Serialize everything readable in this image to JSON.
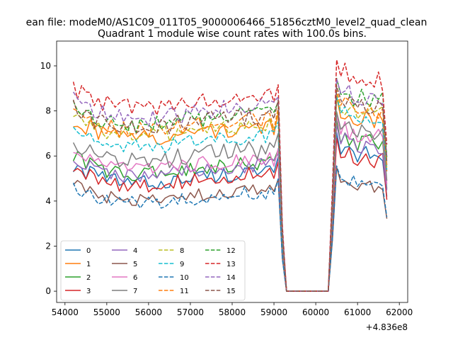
{
  "chart_data": {
    "type": "line",
    "suptitle": "ean file: modeM0/AS1C09_011T05_9000006466_51856cztM0_level2_quad_clean",
    "title": "Quadrant 1 module wise count rates with 100.0s bins.",
    "xlabel": "",
    "ylabel": "",
    "x_offset_label": "+4.836e8",
    "xlim": [
      53800,
      62200
    ],
    "ylim": [
      -0.5,
      11.1
    ],
    "xticks": [
      54000,
      55000,
      56000,
      57000,
      58000,
      59000,
      60000,
      61000,
      62000
    ],
    "yticks": [
      0,
      2,
      4,
      6,
      8,
      10
    ],
    "legend_position": "lower-left",
    "legend_columns": 4,
    "x_start": 54200,
    "x_step": 100,
    "gap": {
      "start_index": 51,
      "end_index": 62,
      "value": 0
    },
    "series": [
      {
        "name": "0",
        "color": "#1f77b4",
        "dash": "solid",
        "pre_level": 5.0,
        "pre_amp": 0.35,
        "post_level": 6.0,
        "post_amp": 0.4
      },
      {
        "name": "1",
        "color": "#ff7f0e",
        "dash": "solid",
        "pre_level": 7.0,
        "pre_amp": 0.4,
        "post_level": 7.6,
        "post_amp": 0.4
      },
      {
        "name": "2",
        "color": "#2ca02c",
        "dash": "solid",
        "pre_level": 5.4,
        "pre_amp": 0.35,
        "post_level": 6.5,
        "post_amp": 0.45
      },
      {
        "name": "3",
        "color": "#d62728",
        "dash": "solid",
        "pre_level": 4.9,
        "pre_amp": 0.35,
        "post_level": 5.8,
        "post_amp": 0.4
      },
      {
        "name": "4",
        "color": "#9467bd",
        "dash": "solid",
        "pre_level": 5.3,
        "pre_amp": 0.35,
        "post_level": 6.4,
        "post_amp": 0.4
      },
      {
        "name": "5",
        "color": "#8c564b",
        "dash": "solid",
        "pre_level": 4.2,
        "pre_amp": 0.3,
        "post_level": 4.6,
        "post_amp": 0.3
      },
      {
        "name": "6",
        "color": "#e377c2",
        "dash": "solid",
        "pre_level": 5.6,
        "pre_amp": 0.35,
        "post_level": 6.8,
        "post_amp": 0.4
      },
      {
        "name": "7",
        "color": "#7f7f7f",
        "dash": "solid",
        "pre_level": 6.0,
        "pre_amp": 0.4,
        "post_level": 7.0,
        "post_amp": 0.4
      },
      {
        "name": "8",
        "color": "#bcbd22",
        "dash": "dashed",
        "pre_level": 7.1,
        "pre_amp": 0.4,
        "post_level": 7.8,
        "post_amp": 0.4
      },
      {
        "name": "9",
        "color": "#17becf",
        "dash": "dashed",
        "pre_level": 6.6,
        "pre_amp": 0.35,
        "post_level": 7.7,
        "post_amp": 0.4
      },
      {
        "name": "10",
        "color": "#1f77b4",
        "dash": "dashed",
        "pre_level": 4.1,
        "pre_amp": 0.3,
        "post_level": 4.7,
        "post_amp": 0.3
      },
      {
        "name": "11",
        "color": "#ff7f0e",
        "dash": "dashed",
        "pre_level": 7.3,
        "pre_amp": 0.4,
        "post_level": 8.0,
        "post_amp": 0.4
      },
      {
        "name": "12",
        "color": "#2ca02c",
        "dash": "dashed",
        "pre_level": 7.6,
        "pre_amp": 0.4,
        "post_level": 8.5,
        "post_amp": 0.45
      },
      {
        "name": "13",
        "color": "#d62728",
        "dash": "dashed",
        "pre_level": 8.4,
        "pre_amp": 0.4,
        "post_level": 9.3,
        "post_amp": 0.5
      },
      {
        "name": "14",
        "color": "#9467bd",
        "dash": "dashed",
        "pre_level": 7.9,
        "pre_amp": 0.4,
        "post_level": 8.5,
        "post_amp": 0.45
      },
      {
        "name": "15",
        "color": "#8c564b",
        "dash": "dashed",
        "pre_level": 7.5,
        "pre_amp": 0.4,
        "post_level": 8.2,
        "post_amp": 0.45
      }
    ]
  }
}
